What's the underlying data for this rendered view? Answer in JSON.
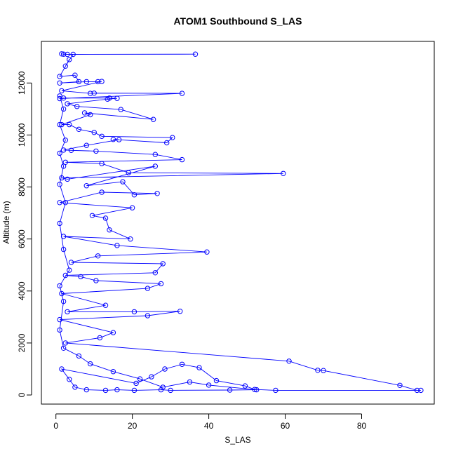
{
  "chart_data": {
    "type": "line",
    "title": "ATOM1 Southbound S_LAS",
    "xlabel": "S_LAS",
    "ylabel": "Altitude (m)",
    "xlim": [
      -3.8,
      99
    ],
    "ylim": [
      -350,
      13600
    ],
    "x_ticks": [
      0,
      20,
      40,
      60,
      80
    ],
    "y_ticks": [
      0,
      2000,
      4000,
      6000,
      8000,
      10000,
      12000
    ],
    "x_tick_labels": [
      "0",
      "20",
      "40",
      "60",
      "80"
    ],
    "y_tick_labels": [
      "0",
      "2000",
      "4000",
      "6000",
      "8000",
      "10000",
      "12000"
    ],
    "grid": false,
    "marker": "open-circle",
    "color": "#0000ff",
    "series": [
      {
        "name": "",
        "points": [
          [
            1.5,
            13120
          ],
          [
            2.0,
            13110
          ],
          [
            3.0,
            13100
          ],
          [
            36.5,
            13110
          ],
          [
            4.5,
            13100
          ],
          [
            2.5,
            12650
          ],
          [
            3.5,
            12900
          ],
          [
            1.0,
            12250
          ],
          [
            5.0,
            12300
          ],
          [
            6.0,
            12050
          ],
          [
            1.0,
            12000
          ],
          [
            8.0,
            12050
          ],
          [
            11.0,
            12050
          ],
          [
            12.0,
            12060
          ],
          [
            1.5,
            11700
          ],
          [
            9.0,
            11600
          ],
          [
            10.0,
            11610
          ],
          [
            33.0,
            11600
          ],
          [
            1.0,
            11400
          ],
          [
            2.0,
            11420
          ],
          [
            14.0,
            11420
          ],
          [
            16.0,
            11410
          ],
          [
            13.5,
            11380
          ],
          [
            3.0,
            11200
          ],
          [
            5.5,
            11100
          ],
          [
            17.0,
            10980
          ],
          [
            25.5,
            10600
          ],
          [
            7.5,
            10850
          ],
          [
            9.0,
            10780
          ],
          [
            1.5,
            10400
          ],
          [
            3.5,
            10400
          ],
          [
            6.0,
            10220
          ],
          [
            10.0,
            10100
          ],
          [
            12.0,
            9950
          ],
          [
            30.5,
            9900
          ],
          [
            29.0,
            9700
          ],
          [
            15.0,
            9830
          ],
          [
            16.5,
            9820
          ],
          [
            8.0,
            9600
          ],
          [
            2.0,
            9420
          ],
          [
            4.0,
            9410
          ],
          [
            10.5,
            9380
          ],
          [
            26.0,
            9250
          ],
          [
            33.0,
            9050
          ],
          [
            2.5,
            8950
          ],
          [
            12.0,
            8900
          ],
          [
            19.0,
            8550
          ],
          [
            59.5,
            8520
          ],
          [
            1.5,
            8350
          ],
          [
            3.0,
            8300
          ],
          [
            26.0,
            8800
          ],
          [
            8.0,
            8050
          ],
          [
            17.5,
            8200
          ],
          [
            20.5,
            7700
          ],
          [
            26.5,
            7750
          ],
          [
            12.0,
            7800
          ],
          [
            1.0,
            7400
          ],
          [
            20.0,
            7200
          ],
          [
            9.5,
            6900
          ],
          [
            13.0,
            6800
          ],
          [
            14.0,
            6350
          ],
          [
            19.5,
            6000
          ],
          [
            2.0,
            6100
          ],
          [
            16.0,
            5750
          ],
          [
            39.5,
            5500
          ],
          [
            11.0,
            5350
          ],
          [
            4.0,
            5100
          ],
          [
            28.0,
            5050
          ],
          [
            26.0,
            4700
          ],
          [
            2.5,
            4600
          ],
          [
            6.5,
            4550
          ],
          [
            10.5,
            4400
          ],
          [
            27.5,
            4280
          ],
          [
            24.0,
            4100
          ],
          [
            1.5,
            3900
          ],
          [
            13.0,
            3450
          ],
          [
            3.0,
            3200
          ],
          [
            20.5,
            3200
          ],
          [
            32.5,
            3220
          ],
          [
            24.0,
            3050
          ],
          [
            1.0,
            2900
          ],
          [
            15.0,
            2400
          ],
          [
            11.5,
            2200
          ],
          [
            2.5,
            2000
          ],
          [
            61.0,
            1300
          ],
          [
            68.5,
            950
          ],
          [
            70.0,
            940
          ],
          [
            90.0,
            370
          ],
          [
            94.5,
            180
          ],
          [
            95.5,
            180
          ],
          [
            57.5,
            180
          ],
          [
            52.0,
            210
          ],
          [
            49.5,
            350
          ],
          [
            42.0,
            550
          ],
          [
            37.5,
            1050
          ],
          [
            33.0,
            1180
          ],
          [
            28.5,
            1000
          ],
          [
            25.0,
            700
          ],
          [
            21.0,
            450
          ],
          [
            1.5,
            1000
          ],
          [
            3.5,
            600
          ],
          [
            5.0,
            300
          ],
          [
            8.0,
            200
          ],
          [
            13.0,
            180
          ],
          [
            16.0,
            200
          ],
          [
            20.5,
            180
          ],
          [
            27.5,
            200
          ],
          [
            30.0,
            180
          ],
          [
            45.5,
            190
          ],
          [
            52.5,
            200
          ],
          [
            40.0,
            380
          ],
          [
            35.0,
            500
          ],
          [
            28.0,
            300
          ],
          [
            22.0,
            620
          ],
          [
            15.0,
            900
          ],
          [
            9.0,
            1200
          ],
          [
            6.0,
            1500
          ],
          [
            2.0,
            1800
          ],
          [
            1.0,
            2500
          ],
          [
            2.0,
            3600
          ],
          [
            1.0,
            4200
          ],
          [
            3.5,
            4800
          ],
          [
            2.0,
            5600
          ],
          [
            1.0,
            6600
          ],
          [
            2.5,
            7400
          ],
          [
            1.0,
            8100
          ],
          [
            2.0,
            8800
          ],
          [
            1.0,
            9300
          ],
          [
            2.5,
            9800
          ],
          [
            1.0,
            10400
          ],
          [
            2.0,
            11000
          ],
          [
            1.0,
            11500
          ]
        ]
      }
    ]
  }
}
